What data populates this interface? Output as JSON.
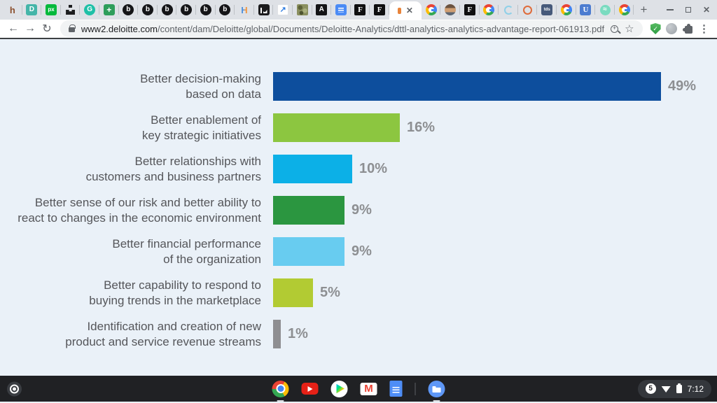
{
  "browser": {
    "tab_strip": {
      "pinned_tabs_before": [
        {
          "type": "letterplain",
          "name": "h",
          "glyph": "h",
          "fg": "#8b4f2d"
        },
        {
          "type": "letter",
          "name": "d",
          "glyph": "D",
          "fg": "#ffffff",
          "bg": "#45b5a9",
          "shape": "rounded"
        },
        {
          "type": "letter",
          "name": "px",
          "glyph": "px",
          "fg": "#ffffff",
          "bg": "#04b93c",
          "shape": "rounded",
          "size": 8
        },
        {
          "type": "podium",
          "name": "podium"
        },
        {
          "type": "letter",
          "name": "g-teal",
          "glyph": "G",
          "fg": "#ffffff",
          "bg": "#1fc0a7",
          "shape": "circle"
        },
        {
          "type": "letter",
          "name": "green-cross",
          "glyph": "+",
          "fg": "#ffffff",
          "bg": "#2e9e5b",
          "shape": "rounded",
          "size": 12
        },
        {
          "type": "letter",
          "name": "b1",
          "glyph": "b",
          "fg": "#ffffff",
          "bg": "#151518",
          "shape": "circle"
        },
        {
          "type": "letter",
          "name": "b2",
          "glyph": "b",
          "fg": "#ffffff",
          "bg": "#151518",
          "shape": "circle"
        },
        {
          "type": "letter",
          "name": "b3",
          "glyph": "b",
          "fg": "#ffffff",
          "bg": "#151518",
          "shape": "circle"
        },
        {
          "type": "letter",
          "name": "b4",
          "glyph": "b",
          "fg": "#ffffff",
          "bg": "#151518",
          "shape": "circle"
        },
        {
          "type": "letter",
          "name": "b5",
          "glyph": "b",
          "fg": "#ffffff",
          "bg": "#151518",
          "shape": "circle"
        },
        {
          "type": "letter",
          "name": "b6",
          "glyph": "b",
          "fg": "#ffffff",
          "bg": "#151518",
          "shape": "circle"
        },
        {
          "type": "hduo",
          "name": "h-blue-orange",
          "glyph": "H"
        },
        {
          "type": "chart",
          "name": "black-chart"
        },
        {
          "type": "arrow",
          "name": "blue-arrow",
          "glyph": "↗",
          "fg": "#2f7de1"
        },
        {
          "type": "camo",
          "name": "camo"
        },
        {
          "type": "letter",
          "name": "a",
          "glyph": "A",
          "fg": "#ffffff",
          "bg": "#141416",
          "shape": "square"
        },
        {
          "type": "doclines",
          "name": "blue-doc",
          "bg": "#4b8bf5"
        },
        {
          "type": "letter",
          "name": "f1",
          "glyph": "F",
          "fg": "#ffffff",
          "bg": "#0f0f10",
          "shape": "square",
          "font": "serif",
          "size": 11
        },
        {
          "type": "letter",
          "name": "f2",
          "glyph": "F",
          "fg": "#ffffff",
          "bg": "#0f0f10",
          "shape": "square",
          "font": "serif",
          "size": 11
        }
      ],
      "active_tab": {
        "close_glyph": "✕"
      },
      "pinned_tabs_after": [
        {
          "type": "google",
          "name": "google1"
        },
        {
          "type": "avatar",
          "name": "avatar"
        },
        {
          "type": "letter",
          "name": "f3",
          "glyph": "F",
          "fg": "#ffffff",
          "bg": "#0f0f10",
          "shape": "square",
          "font": "serif",
          "size": 11
        },
        {
          "type": "google",
          "name": "google2"
        },
        {
          "type": "cring",
          "name": "lightblue-ring"
        },
        {
          "type": "oring",
          "name": "orange-ring"
        },
        {
          "type": "letter",
          "name": "tds",
          "glyph": "tds",
          "fg": "#ffffff",
          "bg": "#46597a",
          "shape": "rounded",
          "size": 6
        },
        {
          "type": "google",
          "name": "google3"
        },
        {
          "type": "letter",
          "name": "u",
          "glyph": "U",
          "fg": "#ffffff",
          "bg": "#4c7cd0",
          "shape": "rounded",
          "font": "serif",
          "size": 11
        },
        {
          "type": "mint",
          "name": "mint-circle",
          "glyph": "≈"
        },
        {
          "type": "google",
          "name": "google4"
        }
      ],
      "new_tab_glyph": "+",
      "window_controls": {
        "close_glyph": "✕"
      }
    },
    "toolbar": {
      "back_glyph": "←",
      "forward_glyph": "→",
      "reload_glyph": "↻",
      "star_glyph": "☆",
      "menu_glyph": "⋮",
      "shield_check_glyph": "✓",
      "url": {
        "host": "www2.deloitte.com",
        "path": "/content/dam/Deloitte/global/Documents/Deloitte-Analytics/dttl-analytics-analytics-advantage-report-061913.pdf"
      }
    }
  },
  "chart_data": {
    "type": "bar",
    "orientation": "horizontal",
    "unit": "%",
    "title": "",
    "xlabel": "",
    "ylabel": "",
    "xlim": [
      0,
      50
    ],
    "grid": false,
    "legend": "none",
    "categories": [
      "Better decision-making\nbased on data",
      "Better enablement of\nkey strategic initiatives",
      "Better relationships with\ncustomers and business partners",
      "Better sense of our risk and better ability to\nreact to changes in the economic environment",
      "Better financial performance\nof the organization",
      "Better capability to respond to\nbuying trends in the marketplace",
      "Identification and creation of new\nproduct and service revenue streams"
    ],
    "values": [
      49,
      16,
      10,
      9,
      9,
      5,
      1
    ],
    "value_labels": [
      "49%",
      "16%",
      "10%",
      "9%",
      "9%",
      "5%",
      "1%"
    ],
    "bar_colors": [
      "#0d4e9d",
      "#8cc640",
      "#0cb0e7",
      "#2b9640",
      "#68ccf0",
      "#b2cb33",
      "#8e8e91"
    ],
    "label_color": "#55565a",
    "value_label_color": "#8d8f92",
    "background_color": "#eaf1f8"
  },
  "shelf": {
    "time": "7:12",
    "notification_count": "5"
  },
  "colors": {
    "tab_strip_bg": "#dee1e6",
    "toolbar_bg": "#ffffff",
    "content_bg": "#eaf1f8",
    "shelf_bg": "#202124",
    "accent_blue": "#4285f4"
  }
}
